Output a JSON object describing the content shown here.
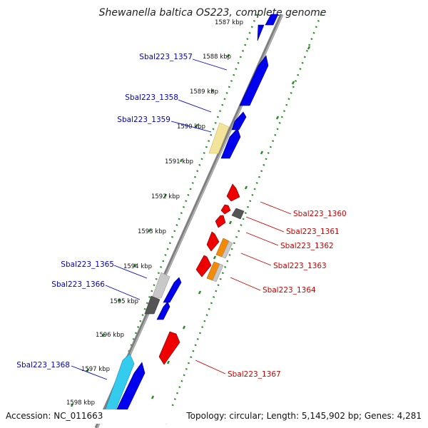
{
  "title": "Shewanella baltica OS223, complete genome",
  "footer": {
    "accession": "Accession: NC_011663",
    "topology": "Topology: circular; Length: 5,145,902 bp; Genes: 4,281"
  },
  "colors": {
    "forward": "#0000ee",
    "reverse": "#ee0000",
    "cyan": "#33ccee",
    "light_yellow": "#f2e49a",
    "light_gray": "#c8c8c8",
    "dark_gray": "#555555",
    "orange": "#f28a0a",
    "dots": "#2a8a2a",
    "backbone": "#808080"
  },
  "scale_labels": [
    "1587 kbp",
    "1588 kbp",
    "1589 kbp",
    "1590 kbp",
    "1591 kbp",
    "1592 kbp",
    "1593 kbp",
    "1594 kbp",
    "1595 kbp",
    "1596 kbp",
    "1597 kbp",
    "1598 kbp"
  ],
  "gene_labels_forward": [
    "Sbal223_1357",
    "Sbal223_1358",
    "Sbal223_1359",
    "Sbal223_1365",
    "Sbal223_1366",
    "Sbal223_1368"
  ],
  "gene_labels_reverse": [
    "Sbal223_1360",
    "Sbal223_1361",
    "Sbal223_1362",
    "Sbal223_1363",
    "Sbal223_1364",
    "Sbal223_1367"
  ]
}
